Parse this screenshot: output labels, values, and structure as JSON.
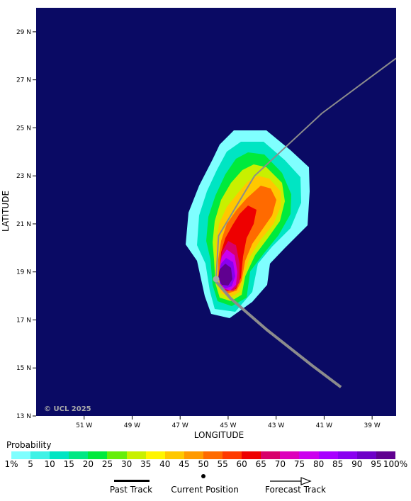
{
  "map": {
    "watermark": "© UCL 2025",
    "x_axis_title": "LONGITUDE",
    "y_axis_title": "LATITUDE",
    "x_ticks": [
      "51 W",
      "49 W",
      "47 W",
      "45 W",
      "43 W",
      "41 W",
      "39 W"
    ],
    "y_ticks": [
      "29 N",
      "27 N",
      "25 N",
      "23 N",
      "21 N",
      "19 N",
      "17 N",
      "15 N",
      "13 N"
    ],
    "background_color": "#0a0a64",
    "track_color": "#8c8c8c"
  },
  "chart_data": {
    "type": "heatmap",
    "xlabel": "LONGITUDE",
    "ylabel": "LATITUDE",
    "xlim_deg_west": [
      53,
      38
    ],
    "ylim_deg_north": [
      13,
      30
    ],
    "past_track": [
      {
        "lon": 40.3,
        "lat": 14.2
      },
      {
        "lon": 41.5,
        "lat": 15.1
      },
      {
        "lon": 43.4,
        "lat": 16.6
      },
      {
        "lon": 44.9,
        "lat": 17.9
      },
      {
        "lon": 45.5,
        "lat": 18.6
      }
    ],
    "current_position": {
      "lon": 45.5,
      "lat": 18.7
    },
    "forecast_track": [
      {
        "lon": 45.5,
        "lat": 18.7
      },
      {
        "lon": 45.4,
        "lat": 20.5
      },
      {
        "lon": 43.9,
        "lat": 23.0
      },
      {
        "lon": 41.1,
        "lat": 25.6
      },
      {
        "lon": 38.0,
        "lat": 27.9
      }
    ],
    "probability_levels": [
      {
        "label": "1%",
        "color": "#7fffff"
      },
      {
        "label": "5",
        "color": "#3ff2e6"
      },
      {
        "label": "10",
        "color": "#00e5c3"
      },
      {
        "label": "15",
        "color": "#00e884"
      },
      {
        "label": "20",
        "color": "#00ea3c"
      },
      {
        "label": "25",
        "color": "#66ee0a"
      },
      {
        "label": "30",
        "color": "#c8f000"
      },
      {
        "label": "35",
        "color": "#fff500"
      },
      {
        "label": "40",
        "color": "#ffc800"
      },
      {
        "label": "45",
        "color": "#ff9a00"
      },
      {
        "label": "50",
        "color": "#ff6a00"
      },
      {
        "label": "55",
        "color": "#ff3a00"
      },
      {
        "label": "60",
        "color": "#ee0000"
      },
      {
        "label": "65",
        "color": "#d8006a"
      },
      {
        "label": "70",
        "color": "#dd00bb"
      },
      {
        "label": "75",
        "color": "#cc00ee"
      },
      {
        "label": "80",
        "color": "#a800ff"
      },
      {
        "label": "85",
        "color": "#8a00f0"
      },
      {
        "label": "90",
        "color": "#6e00c8"
      },
      {
        "label": "95",
        "color": "#600090"
      },
      {
        "label": "100%",
        "color": "#600060"
      }
    ]
  },
  "legend": {
    "title": "Probability",
    "past_track_label": "Past Track",
    "current_position_label": "Current Position",
    "forecast_track_label": "Forecast Track"
  }
}
